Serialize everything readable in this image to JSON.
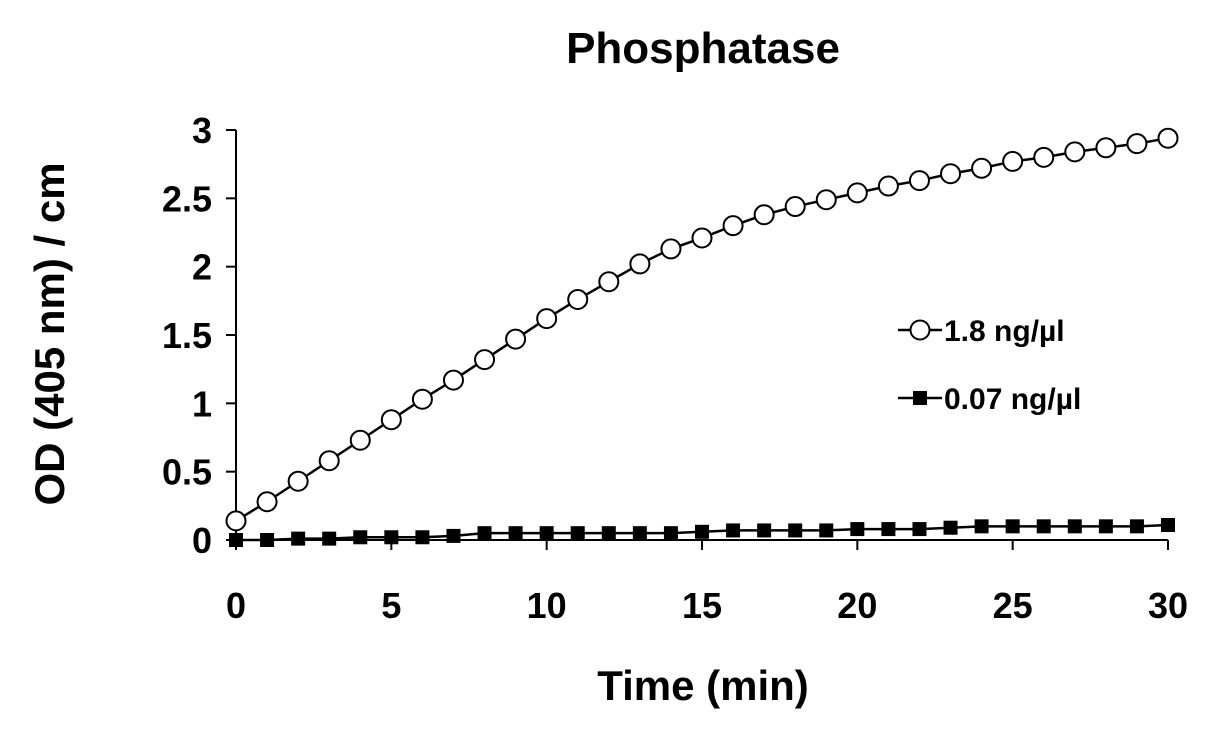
{
  "chart_data": {
    "type": "line",
    "title": "Phosphatase",
    "xlabel": "Time (min)",
    "ylabel": "OD (405 nm) / cm",
    "xlim": [
      0,
      30
    ],
    "ylim": [
      0,
      3
    ],
    "x_ticks": [
      "0",
      "5",
      "10",
      "15",
      "20",
      "25",
      "30"
    ],
    "y_ticks": [
      "0",
      "0.5",
      "1",
      "1.5",
      "2",
      "2.5",
      "3"
    ],
    "grid": false,
    "legend": "right",
    "x": [
      0,
      1,
      2,
      3,
      4,
      5,
      6,
      7,
      8,
      9,
      10,
      11,
      12,
      13,
      14,
      15,
      16,
      17,
      18,
      19,
      20,
      21,
      22,
      23,
      24,
      25,
      26,
      27,
      28,
      29,
      30
    ],
    "series": [
      {
        "name": "1.8 ng/µl",
        "marker": "open-circle",
        "values": [
          0.14,
          0.28,
          0.43,
          0.58,
          0.73,
          0.88,
          1.03,
          1.17,
          1.32,
          1.47,
          1.62,
          1.76,
          1.89,
          2.02,
          2.13,
          2.21,
          2.3,
          2.38,
          2.44,
          2.49,
          2.54,
          2.59,
          2.63,
          2.68,
          2.72,
          2.77,
          2.8,
          2.84,
          2.87,
          2.9,
          2.94
        ]
      },
      {
        "name": "0.07 ng/µl",
        "marker": "filled-square",
        "values": [
          0.0,
          0.0,
          0.01,
          0.01,
          0.02,
          0.02,
          0.02,
          0.03,
          0.05,
          0.05,
          0.05,
          0.05,
          0.05,
          0.05,
          0.05,
          0.06,
          0.07,
          0.07,
          0.07,
          0.07,
          0.08,
          0.08,
          0.08,
          0.09,
          0.1,
          0.1,
          0.1,
          0.1,
          0.1,
          0.1,
          0.11
        ]
      }
    ]
  }
}
